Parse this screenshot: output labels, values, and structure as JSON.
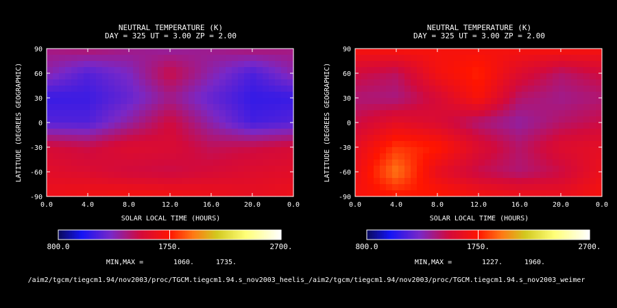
{
  "colors": {
    "background": "#000000",
    "frame": "#ffffff",
    "text": "#ffffff"
  },
  "chart_data": [
    {
      "type": "heatmap",
      "title": "NEUTRAL TEMPERATURE (K)",
      "subtitle": "DAY = 325   UT =  3.00   ZP =    2.00",
      "xlabel": "SOLAR LOCAL TIME (HOURS)",
      "ylabel": "LATITUDE (DEGREES GEOGRAPHIC)",
      "xlim": [
        0,
        24
      ],
      "ylim": [
        -90,
        90
      ],
      "x_ticks": [
        "0.0",
        "4.0",
        "8.0",
        "12.0",
        "16.0",
        "20.0",
        "0.0"
      ],
      "y_ticks": [
        "90",
        "60",
        "30",
        "0",
        "-30",
        "-60",
        "-90"
      ],
      "colorbar": {
        "min_label": "800.0",
        "mid_label": "1750.",
        "max_label": "2700.",
        "range": [
          800,
          2700
        ]
      },
      "minmax_label": "MIN,MAX =",
      "min_value": "1060.",
      "max_value": "1735.",
      "path_text": "/aim2/tgcm/tiegcm1.94/nov2003/proc/TGCM.tiegcm1.94.s_nov2003_heelis_",
      "field": {
        "lat": [
          90,
          60,
          30,
          0,
          -30,
          -60,
          -90
        ],
        "lt": [
          0,
          4,
          8,
          12,
          16,
          20,
          24
        ],
        "values": [
          [
            1380,
            1420,
            1370,
            1320,
            1360,
            1410,
            1380
          ],
          [
            1300,
            1160,
            1260,
            1480,
            1300,
            1140,
            1300
          ],
          [
            1090,
            1100,
            1200,
            1360,
            1200,
            1080,
            1090
          ],
          [
            1160,
            1150,
            1320,
            1500,
            1300,
            1120,
            1160
          ],
          [
            1520,
            1480,
            1560,
            1540,
            1450,
            1480,
            1520
          ],
          [
            1580,
            1550,
            1500,
            1480,
            1520,
            1560,
            1580
          ],
          [
            1650,
            1680,
            1700,
            1690,
            1660,
            1620,
            1650
          ]
        ]
      }
    },
    {
      "type": "heatmap",
      "title": "NEUTRAL TEMPERATURE (K)",
      "subtitle": "DAY = 325   UT =  3.00   ZP =    2.00",
      "xlabel": "SOLAR LOCAL TIME (HOURS)",
      "ylabel": "LATITUDE (DEGREES GEOGRAPHIC)",
      "xlim": [
        0,
        24
      ],
      "ylim": [
        -90,
        90
      ],
      "x_ticks": [
        "0.0",
        "4.0",
        "8.0",
        "12.0",
        "16.0",
        "20.0",
        "0.0"
      ],
      "y_ticks": [
        "90",
        "60",
        "30",
        "0",
        "-30",
        "-60",
        "-90"
      ],
      "colorbar": {
        "min_label": "800.0",
        "mid_label": "1750.",
        "max_label": "2700.",
        "range": [
          800,
          2700
        ]
      },
      "minmax_label": "MIN,MAX =",
      "min_value": "1227.",
      "max_value": "1960.",
      "path_text": "/aim2/tgcm/tiegcm1.94/nov2003/proc/TGCM.tiegcm1.94.s_nov2003_weimer",
      "field": {
        "lat": [
          90,
          60,
          30,
          0,
          -30,
          -60,
          -90
        ],
        "lt": [
          0,
          4,
          8,
          12,
          16,
          20,
          24
        ],
        "values": [
          [
            1700,
            1720,
            1700,
            1690,
            1700,
            1720,
            1700
          ],
          [
            1500,
            1440,
            1680,
            1780,
            1560,
            1420,
            1500
          ],
          [
            1400,
            1380,
            1520,
            1720,
            1420,
            1360,
            1400
          ],
          [
            1480,
            1600,
            1540,
            1400,
            1320,
            1420,
            1480
          ],
          [
            1600,
            1820,
            1760,
            1560,
            1420,
            1560,
            1600
          ],
          [
            1640,
            1950,
            1620,
            1470,
            1400,
            1480,
            1640
          ],
          [
            1700,
            1740,
            1760,
            1700,
            1660,
            1640,
            1700
          ]
        ]
      }
    }
  ]
}
